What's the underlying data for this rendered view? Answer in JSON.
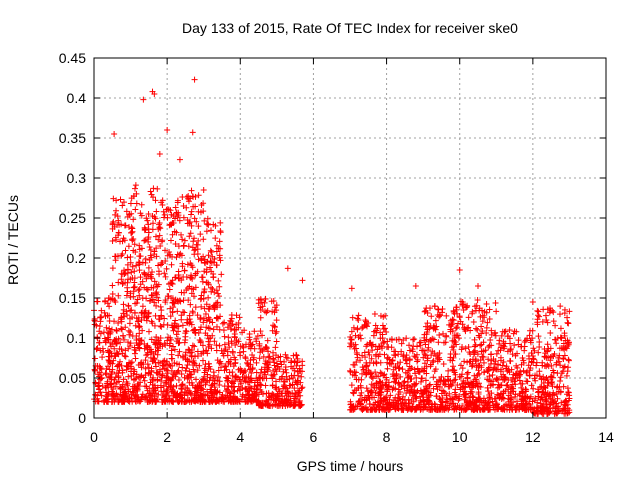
{
  "chart_data": {
    "type": "scatter",
    "title": "Day 133 of 2015, Rate Of TEC Index for receiver ske0",
    "xlabel": "GPS time / hours",
    "ylabel": "ROTI / TECUs",
    "xlim": [
      0,
      14
    ],
    "ylim": [
      0,
      0.45
    ],
    "xticks": [
      0,
      2,
      4,
      6,
      8,
      10,
      12,
      14
    ],
    "xtick_labels": [
      "0",
      "2",
      "4",
      "6",
      "8",
      "10",
      "12",
      "14"
    ],
    "yticks": [
      0,
      0.05,
      0.1,
      0.15,
      0.2,
      0.25,
      0.3,
      0.35,
      0.4,
      0.45
    ],
    "ytick_labels": [
      "0",
      "0.05",
      "0.1",
      "0.15",
      "0.2",
      "0.25",
      "0.3",
      "0.35",
      "0.4",
      "0.45"
    ],
    "grid": true,
    "marker": "+",
    "color": "#ff0000",
    "series": [
      {
        "name": "ROTI",
        "notable_points": [
          {
            "x": 0.55,
            "y": 0.355
          },
          {
            "x": 1.35,
            "y": 0.398
          },
          {
            "x": 1.6,
            "y": 0.408
          },
          {
            "x": 1.65,
            "y": 0.405
          },
          {
            "x": 2.75,
            "y": 0.423
          },
          {
            "x": 2.7,
            "y": 0.357
          },
          {
            "x": 2.0,
            "y": 0.36
          },
          {
            "x": 1.8,
            "y": 0.33
          },
          {
            "x": 2.35,
            "y": 0.323
          },
          {
            "x": 5.3,
            "y": 0.187
          },
          {
            "x": 5.7,
            "y": 0.172
          },
          {
            "x": 7.05,
            "y": 0.162
          },
          {
            "x": 8.8,
            "y": 0.165
          },
          {
            "x": 10.0,
            "y": 0.185
          },
          {
            "x": 10.5,
            "y": 0.165
          },
          {
            "x": 12.0,
            "y": 0.145
          }
        ],
        "envelope": [
          {
            "x_start": 0.0,
            "x_end": 0.5,
            "y_min": 0.02,
            "y_max": 0.15
          },
          {
            "x_start": 0.5,
            "x_end": 1.0,
            "y_min": 0.02,
            "y_max": 0.28
          },
          {
            "x_start": 1.0,
            "x_end": 1.5,
            "y_min": 0.02,
            "y_max": 0.3
          },
          {
            "x_start": 1.5,
            "x_end": 2.0,
            "y_min": 0.02,
            "y_max": 0.29
          },
          {
            "x_start": 2.0,
            "x_end": 2.5,
            "y_min": 0.02,
            "y_max": 0.28
          },
          {
            "x_start": 2.5,
            "x_end": 3.0,
            "y_min": 0.02,
            "y_max": 0.29
          },
          {
            "x_start": 3.0,
            "x_end": 3.5,
            "y_min": 0.02,
            "y_max": 0.26
          },
          {
            "x_start": 3.5,
            "x_end": 4.0,
            "y_min": 0.02,
            "y_max": 0.13
          },
          {
            "x_start": 4.0,
            "x_end": 4.5,
            "y_min": 0.02,
            "y_max": 0.11
          },
          {
            "x_start": 4.5,
            "x_end": 5.0,
            "y_min": 0.015,
            "y_max": 0.15
          },
          {
            "x_start": 5.0,
            "x_end": 5.7,
            "y_min": 0.015,
            "y_max": 0.08
          },
          {
            "x_start": 7.0,
            "x_end": 8.0,
            "y_min": 0.01,
            "y_max": 0.13
          },
          {
            "x_start": 8.0,
            "x_end": 9.0,
            "y_min": 0.01,
            "y_max": 0.1
          },
          {
            "x_start": 9.0,
            "x_end": 10.0,
            "y_min": 0.01,
            "y_max": 0.14
          },
          {
            "x_start": 10.0,
            "x_end": 11.0,
            "y_min": 0.01,
            "y_max": 0.15
          },
          {
            "x_start": 11.0,
            "x_end": 12.0,
            "y_min": 0.01,
            "y_max": 0.11
          },
          {
            "x_start": 12.0,
            "x_end": 13.0,
            "y_min": 0.005,
            "y_max": 0.14
          }
        ],
        "data_gap": [
          5.7,
          7.0
        ]
      }
    ]
  }
}
